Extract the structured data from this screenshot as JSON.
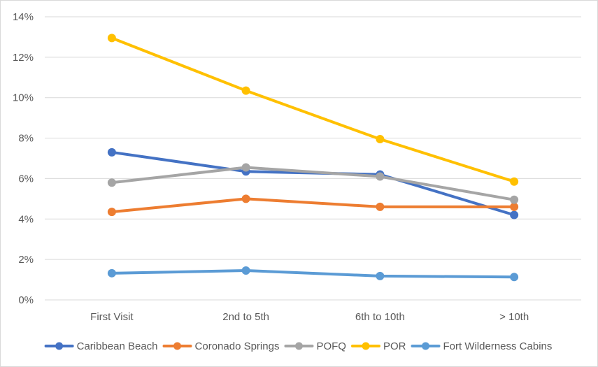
{
  "chart_data": {
    "type": "line",
    "title": "",
    "xlabel": "",
    "ylabel": "",
    "categories": [
      "First Visit",
      "2nd to 5th",
      "6th to 10th",
      "> 10th"
    ],
    "ylim": [
      0,
      0.14
    ],
    "yticks": [
      0,
      0.02,
      0.04,
      0.06,
      0.08,
      0.1,
      0.12,
      0.14
    ],
    "ytick_labels": [
      "0%",
      "2%",
      "4%",
      "6%",
      "8%",
      "10%",
      "12%",
      "14%"
    ],
    "grid": true,
    "legend_position": "bottom",
    "series": [
      {
        "name": "Caribbean Beach",
        "color": "#4472C4",
        "values": [
          0.073,
          0.0635,
          0.062,
          0.042
        ]
      },
      {
        "name": "Coronado Springs",
        "color": "#ED7D31",
        "values": [
          0.0435,
          0.05,
          0.046,
          0.046
        ]
      },
      {
        "name": "POFQ",
        "color": "#A5A5A5",
        "values": [
          0.058,
          0.0655,
          0.061,
          0.0495
        ]
      },
      {
        "name": "POR",
        "color": "#FFC000",
        "values": [
          0.1295,
          0.1035,
          0.0795,
          0.0585
        ]
      },
      {
        "name": "Fort Wilderness Cabins",
        "color": "#5B9BD5",
        "values": [
          0.0132,
          0.0145,
          0.0118,
          0.0113
        ]
      }
    ]
  }
}
